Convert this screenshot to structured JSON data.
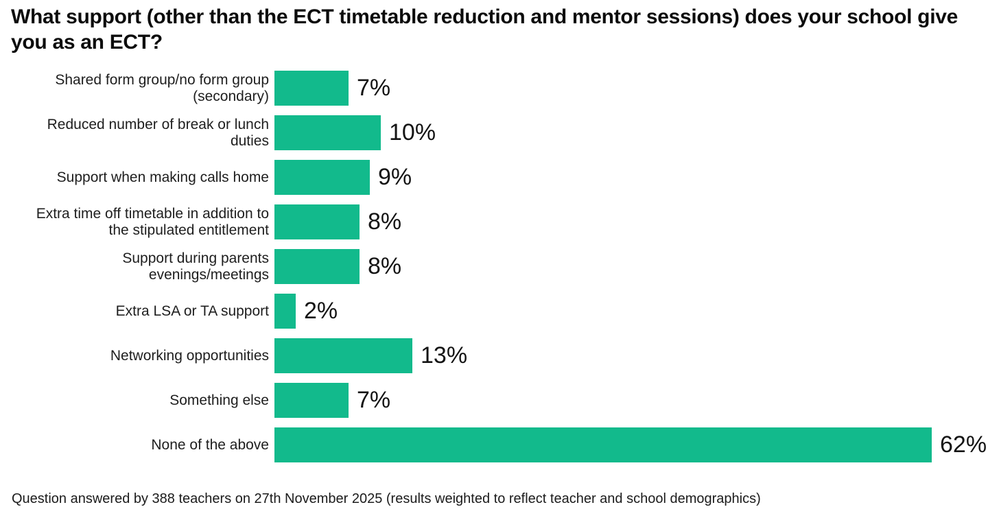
{
  "title": "What support (other than the ECT timetable reduction and mentor sessions) does your school give you as an ECT?",
  "footnote": "Question answered by 388 teachers on 27th November 2025 (results weighted to reflect teacher and school demographics)",
  "colors": {
    "bar": "#12BA8C",
    "title_text": "#0c0c0c",
    "label_text": "#1e1e1e",
    "value_text": "#141414",
    "background": "#ffffff"
  },
  "chart_data": {
    "type": "bar",
    "orientation": "horizontal",
    "title": "What support (other than the ECT timetable reduction and mentor sessions) does your school give you as an ECT?",
    "categories": [
      "Shared form group/no form group (secondary)",
      "Reduced number of break or lunch duties",
      "Support when making calls home",
      "Extra time off timetable in addition to the stipulated entitlement",
      "Support during parents evenings/meetings",
      "Extra LSA or TA support",
      "Networking opportunities",
      "Something else",
      "None of the above"
    ],
    "values": [
      7,
      10,
      9,
      8,
      8,
      2,
      13,
      7,
      62
    ],
    "value_labels": [
      "7%",
      "10%",
      "9%",
      "8%",
      "8%",
      "2%",
      "13%",
      "7%",
      "62%"
    ],
    "unit": "%",
    "xlim": [
      0,
      62
    ],
    "bar_color": "#12BA8C",
    "grid": false,
    "legend": false,
    "value_label_position": "right-of-bar",
    "footnote": "Question answered by 388 teachers on 27th November 2025 (results weighted to reflect teacher and school demographics)"
  }
}
